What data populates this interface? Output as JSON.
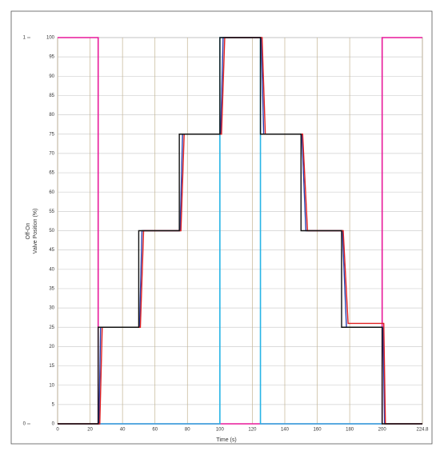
{
  "chart_data": {
    "type": "line",
    "x_label": "Time (s)",
    "y_label": "Valve Position (%)",
    "y2_label": "Off-On",
    "xlim": [
      0,
      224.8
    ],
    "xticks": [
      0,
      20,
      40,
      60,
      80,
      100,
      120,
      140,
      160,
      180,
      200,
      224.8
    ],
    "ylim": [
      0,
      100
    ],
    "yticks": [
      0,
      5,
      10,
      15,
      20,
      25,
      30,
      35,
      40,
      45,
      50,
      55,
      60,
      65,
      70,
      75,
      80,
      85,
      90,
      95,
      100
    ],
    "y2lim": [
      0,
      1
    ],
    "y2ticks": [
      0,
      1
    ],
    "grid": true,
    "series": [
      {
        "color": "#e8199a",
        "axis": "y2",
        "x": [
          0,
          25,
          25,
          200,
          200,
          224.8
        ],
        "values": [
          1,
          1,
          0,
          0,
          1,
          1
        ]
      },
      {
        "color": "#27b4e6",
        "axis": "y2",
        "x": [
          25,
          100,
          100,
          125,
          125,
          200
        ],
        "values": [
          0,
          0,
          1,
          1,
          0,
          0
        ]
      },
      {
        "color": "#2a3fb0",
        "x": [
          0,
          25.5,
          26.5,
          50.5,
          52,
          75.5,
          77,
          100.5,
          102,
          125.5,
          127,
          150.5,
          153,
          175.5,
          178,
          200.5,
          201.5,
          224.8
        ],
        "values": [
          0,
          0,
          25,
          25,
          50,
          50,
          75,
          75,
          100,
          100,
          75,
          75,
          50,
          50,
          25,
          25,
          0,
          0
        ]
      },
      {
        "color": "#e02020",
        "x": [
          0,
          26,
          27.5,
          51,
          53,
          76,
          78,
          101,
          103,
          126,
          128,
          151,
          154,
          176,
          179,
          201,
          202,
          224.8
        ],
        "values": [
          0,
          0,
          25,
          25,
          50,
          50,
          75,
          75,
          100,
          100,
          75,
          75,
          50,
          50,
          26,
          26,
          0,
          0
        ]
      },
      {
        "color": "#111111",
        "x": [
          0,
          25,
          25,
          50,
          50,
          75,
          75,
          100,
          100,
          125,
          125,
          150,
          150,
          175,
          175,
          200,
          200,
          224.8
        ],
        "values": [
          0,
          0,
          25,
          25,
          50,
          50,
          75,
          75,
          100,
          100,
          75,
          75,
          50,
          50,
          25,
          25,
          0,
          0
        ]
      }
    ]
  }
}
